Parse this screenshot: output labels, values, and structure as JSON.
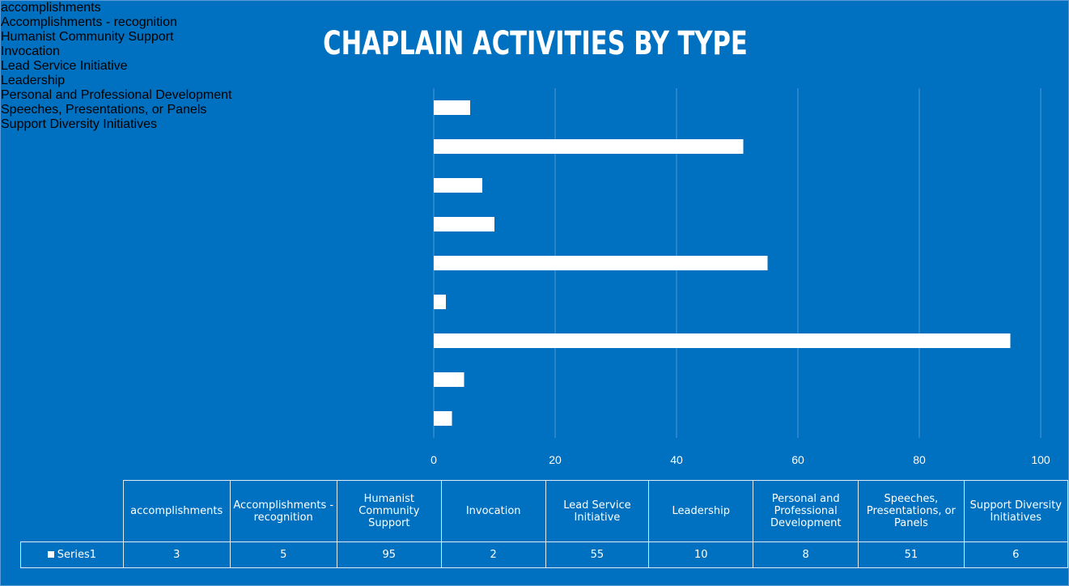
{
  "chart_data": {
    "type": "bar",
    "orientation": "horizontal",
    "title": "CHAPLAIN ACTIVITIES BY TYPE",
    "categories": [
      "accomplishments",
      "Accomplishments - recognition",
      "Humanist Community Support",
      "Invocation",
      "Lead Service Initiative",
      "Leadership",
      "Personal and Professional Development",
      "Speeches, Presentations, or Panels",
      "Support Diversity Initiatives"
    ],
    "series": [
      {
        "name": "Series1",
        "color": "#ffffff",
        "values": [
          3,
          5,
          95,
          2,
          55,
          10,
          8,
          51,
          6
        ]
      }
    ],
    "xlim": [
      0,
      100
    ],
    "xticks": [
      0,
      20,
      40,
      60,
      80,
      100
    ],
    "grid": true
  }
}
